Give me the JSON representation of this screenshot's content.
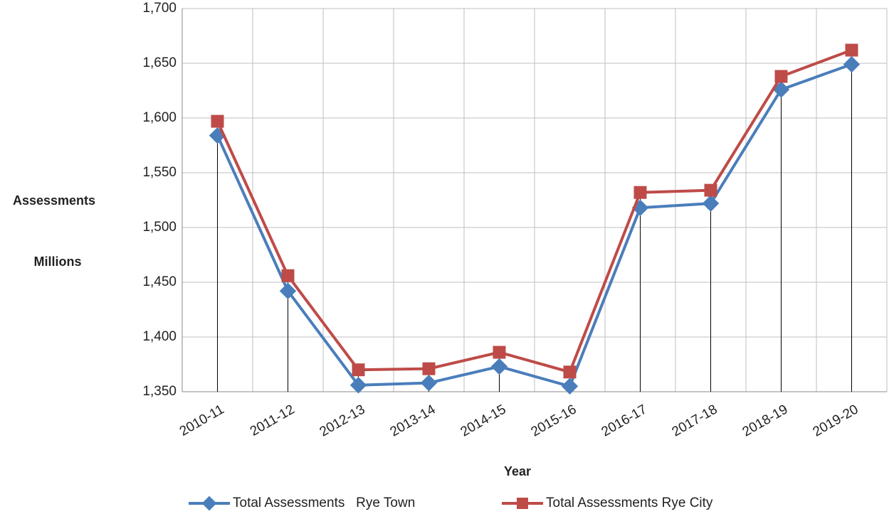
{
  "chart_data": {
    "type": "line",
    "xlabel": "Year",
    "ylabel": [
      "Assessments",
      "Millions"
    ],
    "categories": [
      "2010-11",
      "2011-12",
      "2012-13",
      "2013-14",
      "2014-15",
      "2015-16",
      "2016-17",
      "2017-18",
      "2018-19",
      "2019-20"
    ],
    "series": [
      {
        "name": "Total Assessments   Rye Town",
        "color": "#4a7ebb",
        "marker": "diamond",
        "values": [
          1584,
          1442,
          1356,
          1358,
          1373,
          1355,
          1518,
          1522,
          1626,
          1649
        ]
      },
      {
        "name": "Total Assessments Rye City",
        "color": "#be4b48",
        "marker": "square",
        "values": [
          1597,
          1456,
          1370,
          1371,
          1386,
          1368,
          1532,
          1534,
          1638,
          1662
        ]
      }
    ],
    "ylim": [
      1350,
      1700
    ],
    "yticks": [
      {
        "value": 1350,
        "label": "1,350"
      },
      {
        "value": 1400,
        "label": "1,400"
      },
      {
        "value": 1450,
        "label": "1,450"
      },
      {
        "value": 1500,
        "label": "1,500"
      },
      {
        "value": 1550,
        "label": "1,550"
      },
      {
        "value": 1600,
        "label": "1,600"
      },
      {
        "value": 1650,
        "label": "1,650"
      },
      {
        "value": 1700,
        "label": "1,700"
      }
    ],
    "grid": true,
    "drop_lines": true,
    "legend": "bottom"
  }
}
